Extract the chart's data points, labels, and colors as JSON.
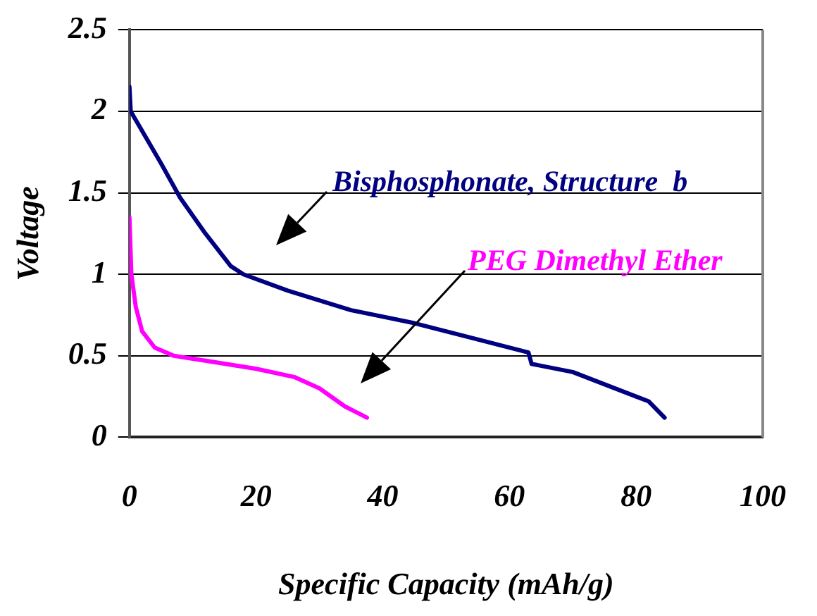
{
  "chart_data": {
    "type": "line",
    "xlabel": "Specific Capacity (mAh/g)",
    "ylabel": "Voltage",
    "xlim": [
      0,
      100
    ],
    "xticks": [
      0,
      20,
      40,
      60,
      80,
      100
    ],
    "ylim": [
      0,
      2.5
    ],
    "yticks": [
      0,
      0.5,
      1,
      1.5,
      2,
      2.5
    ],
    "grid": "y",
    "legend": false,
    "marker": "none",
    "line_style": "solid",
    "series": [
      {
        "name": "Bisphosphonate, Structure  b",
        "color": "#000080",
        "x": [
          0,
          0.2,
          2,
          5,
          8,
          12,
          16,
          18,
          25,
          35,
          45,
          55,
          63,
          63.5,
          70,
          80,
          82,
          84.5
        ],
        "values": [
          2.15,
          2.0,
          1.88,
          1.68,
          1.47,
          1.25,
          1.05,
          1.0,
          0.9,
          0.78,
          0.7,
          0.6,
          0.52,
          0.45,
          0.4,
          0.25,
          0.22,
          0.12
        ]
      },
      {
        "name": "PEG Dimethyl Ether",
        "color": "#ff00ff",
        "x": [
          0,
          0.3,
          1,
          2,
          4,
          7,
          12,
          20,
          26,
          30,
          34,
          37.5
        ],
        "values": [
          1.35,
          1.0,
          0.8,
          0.65,
          0.55,
          0.5,
          0.47,
          0.42,
          0.37,
          0.3,
          0.19,
          0.12
        ]
      }
    ]
  }
}
